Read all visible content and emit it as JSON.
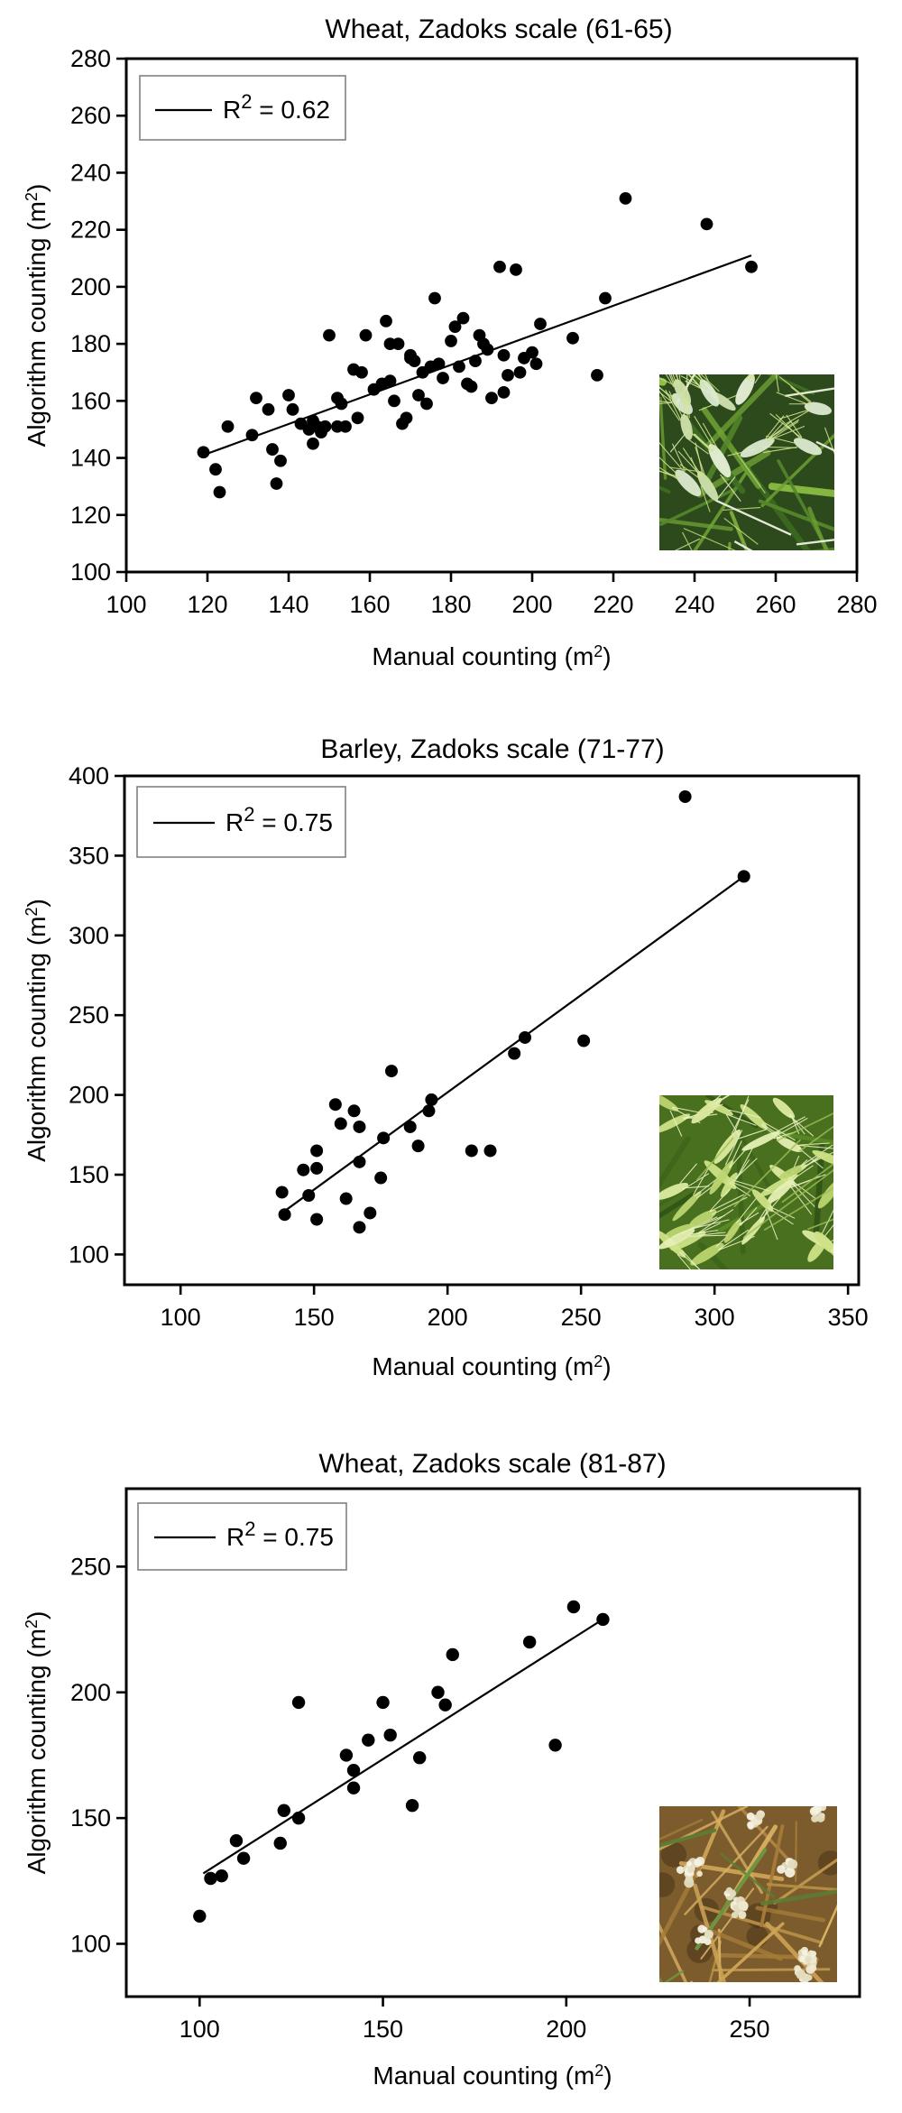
{
  "figure": {
    "background": "#ffffff",
    "ink_color": "#000000",
    "legend_border_color": "#808080"
  },
  "chart_data": [
    {
      "type": "scatter",
      "title": "Wheat,  Zadoks scale (61-65)",
      "xlabel": "Manual counting (m2)",
      "xlabel_base": "Manual counting (m",
      "xlabel_sup": "2",
      "xlabel_end": ")",
      "ylabel": "Algorithm counting (m2)",
      "ylabel_base": "Algorithm counting (m",
      "ylabel_sup": "2",
      "ylabel_end": ")",
      "legend": {
        "base": "R",
        "sup": "2",
        "rest": " = 0.62",
        "text": "R2 = 0.62",
        "position": "top-left"
      },
      "grid": false,
      "marker": {
        "shape": "circle",
        "color": "#000000",
        "radius": 6.9
      },
      "xlim": [
        100,
        280
      ],
      "ylim": [
        100,
        280
      ],
      "xticks": [
        100,
        120,
        140,
        160,
        180,
        200,
        220,
        240,
        260,
        280
      ],
      "yticks": [
        100,
        120,
        140,
        160,
        180,
        200,
        220,
        240,
        260,
        280
      ],
      "trendline": {
        "x1": 119,
        "y1": 141,
        "x2": 254,
        "y2": 211,
        "color": "#000000"
      },
      "points": [
        [
          119,
          142
        ],
        [
          122,
          136
        ],
        [
          123,
          128
        ],
        [
          125,
          151
        ],
        [
          131,
          148
        ],
        [
          132,
          161
        ],
        [
          135,
          157
        ],
        [
          136,
          143
        ],
        [
          137,
          131
        ],
        [
          138,
          139
        ],
        [
          140,
          162
        ],
        [
          141,
          157
        ],
        [
          143,
          152
        ],
        [
          145,
          150
        ],
        [
          146,
          145
        ],
        [
          146,
          153
        ],
        [
          147,
          151
        ],
        [
          148,
          149
        ],
        [
          149,
          151
        ],
        [
          150,
          183
        ],
        [
          152,
          151
        ],
        [
          152,
          161
        ],
        [
          153,
          159
        ],
        [
          154,
          151
        ],
        [
          156,
          171
        ],
        [
          157,
          154
        ],
        [
          158,
          170
        ],
        [
          159,
          183
        ],
        [
          161,
          164
        ],
        [
          163,
          166
        ],
        [
          164,
          188
        ],
        [
          165,
          167
        ],
        [
          165,
          180
        ],
        [
          166,
          160
        ],
        [
          167,
          180
        ],
        [
          168,
          152
        ],
        [
          169,
          154
        ],
        [
          170,
          175
        ],
        [
          170,
          176
        ],
        [
          171,
          174
        ],
        [
          172,
          162
        ],
        [
          173,
          170
        ],
        [
          174,
          159
        ],
        [
          175,
          172
        ],
        [
          176,
          196
        ],
        [
          177,
          173
        ],
        [
          178,
          168
        ],
        [
          180,
          181
        ],
        [
          181,
          186
        ],
        [
          182,
          172
        ],
        [
          183,
          189
        ],
        [
          184,
          166
        ],
        [
          185,
          165
        ],
        [
          186,
          174
        ],
        [
          187,
          183
        ],
        [
          188,
          180
        ],
        [
          189,
          178
        ],
        [
          190,
          161
        ],
        [
          192,
          207
        ],
        [
          193,
          163
        ],
        [
          193,
          176
        ],
        [
          194,
          169
        ],
        [
          196,
          206
        ],
        [
          197,
          170
        ],
        [
          198,
          175
        ],
        [
          200,
          177
        ],
        [
          201,
          173
        ],
        [
          202,
          187
        ],
        [
          210,
          182
        ],
        [
          216,
          169
        ],
        [
          218,
          196
        ],
        [
          223,
          231
        ],
        [
          243,
          222
        ],
        [
          254,
          207
        ]
      ],
      "inset": {
        "name": "green-wheat-spikes-photo",
        "style": "awned-green",
        "colors": {
          "bg": "#2d4a1c",
          "blades": [
            "#3f6f22",
            "#55872a",
            "#6fa234",
            "#8fc244"
          ],
          "awns": [
            "#cfe48e",
            "#e2efba",
            "#bcd877"
          ],
          "stems": [
            "#eef2e2"
          ],
          "spikes": [
            "#dcead0",
            "#e8f0d8",
            "#cfe0ae"
          ]
        }
      }
    },
    {
      "type": "scatter",
      "title": "Barley, Zadoks scale (71-77)",
      "xlabel": "Manual counting (m2)",
      "xlabel_base": "Manual counting (m",
      "xlabel_sup": "2",
      "xlabel_end": ")",
      "ylabel": "Algorithm counting (m2)",
      "ylabel_base": "Algorithm counting (m",
      "ylabel_sup": "2",
      "ylabel_end": ")",
      "legend": {
        "base": "R",
        "sup": "2",
        "rest": " = 0.75",
        "text": "R2 = 0.75",
        "position": "top-left"
      },
      "grid": false,
      "marker": {
        "shape": "circle",
        "color": "#000000",
        "radius": 7.0
      },
      "xlim": [
        79,
        354
      ],
      "ylim": [
        81,
        400
      ],
      "xticks": [
        100,
        150,
        200,
        250,
        300,
        350
      ],
      "yticks": [
        100,
        150,
        200,
        250,
        300,
        350,
        400
      ],
      "trendline": {
        "x1": 138,
        "y1": 126,
        "x2": 311,
        "y2": 337,
        "color": "#000000"
      },
      "points": [
        [
          138,
          139
        ],
        [
          139,
          125
        ],
        [
          146,
          153
        ],
        [
          148,
          137
        ],
        [
          151,
          154
        ],
        [
          151,
          165
        ],
        [
          151,
          122
        ],
        [
          158,
          194
        ],
        [
          160,
          182
        ],
        [
          162,
          135
        ],
        [
          165,
          190
        ],
        [
          167,
          180
        ],
        [
          167,
          158
        ],
        [
          167,
          117
        ],
        [
          171,
          126
        ],
        [
          175,
          148
        ],
        [
          176,
          173
        ],
        [
          179,
          215
        ],
        [
          186,
          180
        ],
        [
          189,
          168
        ],
        [
          193,
          190
        ],
        [
          194,
          197
        ],
        [
          209,
          165
        ],
        [
          216,
          165
        ],
        [
          225,
          226
        ],
        [
          229,
          236
        ],
        [
          251,
          234
        ],
        [
          289,
          387
        ],
        [
          311,
          337
        ]
      ],
      "inset": {
        "name": "green-barley-spikes-photo",
        "style": "lying-barley",
        "colors": {
          "bg": "#49701f",
          "blades": [
            "#2f5214",
            "#3c651a",
            "#598a24"
          ],
          "awns": [
            "#eaf2c2"
          ],
          "stems": [
            "#9fbf54"
          ],
          "spikes": [
            "#cfe187",
            "#dcea9f",
            "#bcd56f",
            "#e6efb4"
          ]
        }
      }
    },
    {
      "type": "scatter",
      "title": "Wheat, Zadoks scale (81-87)",
      "xlabel": "Manual counting (m2)",
      "xlabel_base": "Manual counting (m",
      "xlabel_sup": "2",
      "xlabel_end": ")",
      "ylabel": "Algorithm counting (m2)",
      "ylabel_base": "Algorithm counting (m",
      "ylabel_sup": "2",
      "ylabel_end": ")",
      "legend": {
        "base": "R",
        "sup": "2",
        "rest": " = 0.75",
        "text": "R2 = 0.75",
        "position": "top-left"
      },
      "grid": false,
      "marker": {
        "shape": "circle",
        "color": "#000000",
        "radius": 7.2
      },
      "xlim": [
        80,
        280
      ],
      "ylim": [
        79,
        281
      ],
      "xticks": [
        100,
        150,
        200,
        250
      ],
      "yticks": [
        100,
        150,
        200,
        250
      ],
      "trendline": {
        "x1": 101,
        "y1": 128,
        "x2": 211,
        "y2": 230,
        "color": "#000000"
      },
      "points": [
        [
          100,
          111
        ],
        [
          103,
          126
        ],
        [
          106,
          127
        ],
        [
          110,
          141
        ],
        [
          112,
          134
        ],
        [
          122,
          140
        ],
        [
          123,
          153
        ],
        [
          127,
          150
        ],
        [
          127,
          196
        ],
        [
          140,
          175
        ],
        [
          142,
          169
        ],
        [
          142,
          162
        ],
        [
          146,
          181
        ],
        [
          150,
          196
        ],
        [
          152,
          183
        ],
        [
          158,
          155
        ],
        [
          160,
          174
        ],
        [
          165,
          200
        ],
        [
          167,
          195
        ],
        [
          169,
          215
        ],
        [
          190,
          220
        ],
        [
          197,
          179
        ],
        [
          202,
          234
        ],
        [
          210,
          229
        ]
      ],
      "inset": {
        "name": "ripe-wheat-spikes-photo",
        "style": "ripe-fluffy",
        "colors": {
          "bg": "#7c5c2d",
          "blades": [
            "#b98f46",
            "#cda355",
            "#a67c38",
            "#d9b264"
          ],
          "greens": [
            "#5d7d33",
            "#6f9440"
          ],
          "dark": "#3b2c15",
          "heads": [
            "#efe9d2",
            "#f5f1e0",
            "#e3dcc0"
          ]
        }
      }
    }
  ]
}
